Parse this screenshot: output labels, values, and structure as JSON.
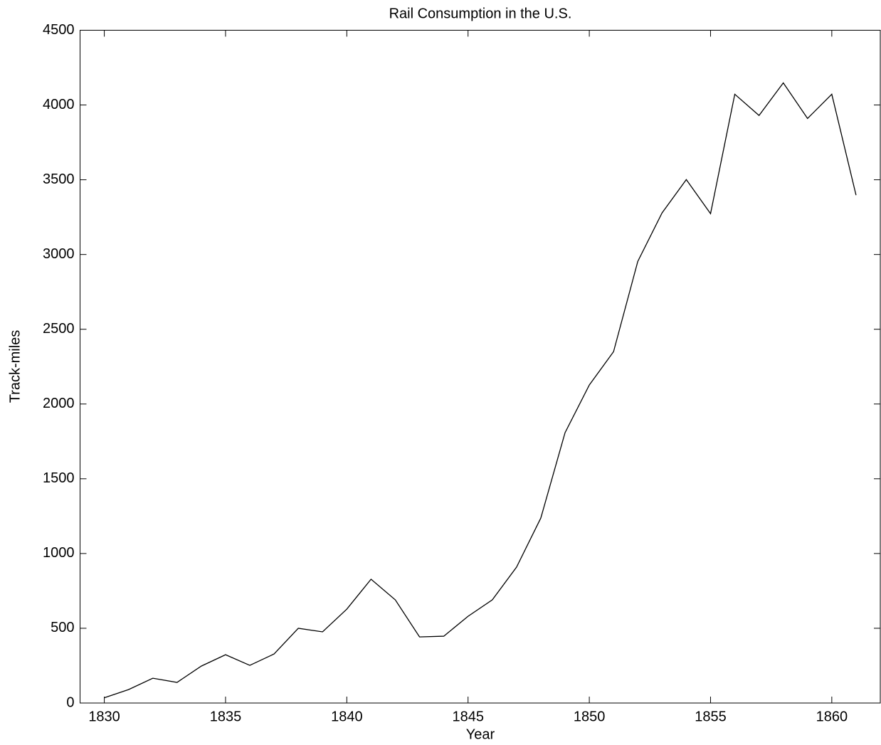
{
  "chart_data": {
    "type": "line",
    "title": "Rail Consumption in the U.S.",
    "x_label": "Year",
    "y_label": "Track-miles",
    "x": [
      1830,
      1831,
      1832,
      1833,
      1834,
      1835,
      1836,
      1837,
      1838,
      1839,
      1840,
      1841,
      1842,
      1843,
      1844,
      1845,
      1846,
      1847,
      1848,
      1849,
      1850,
      1851,
      1852,
      1853,
      1854,
      1855,
      1856,
      1857,
      1858,
      1859,
      1860,
      1861
    ],
    "series": [
      {
        "name": "Track-miles",
        "color": "#000000",
        "values": [
          35,
          90,
          166,
          138,
          247,
          323,
          252,
          328,
          500,
          476,
          628,
          828,
          690,
          442,
          447,
          580,
          690,
          909,
          1237,
          1808,
          2127,
          2350,
          2954,
          3278,
          3501,
          3273,
          4072,
          3930,
          4148,
          3910,
          4072,
          3397
        ]
      }
    ],
    "xlim": [
      1829,
      1862
    ],
    "xticks": [
      1830,
      1835,
      1840,
      1845,
      1850,
      1855,
      1860
    ],
    "ylim": [
      0,
      4500
    ],
    "yticks": [
      0,
      500,
      1000,
      1500,
      2000,
      2500,
      3000,
      3500,
      4000,
      4500
    ],
    "grid": false
  }
}
